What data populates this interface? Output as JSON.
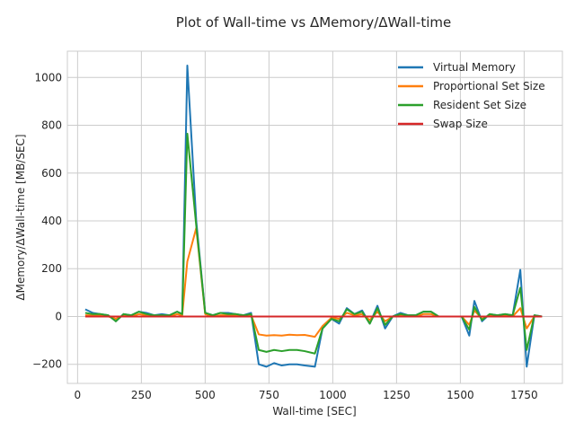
{
  "chart_data": {
    "type": "line",
    "title": "Plot of Wall-time vs ΔMemory/ΔWall-time",
    "xlabel": "Wall-time [SEC]",
    "ylabel": "ΔMemory/ΔWall-time [MB/SEC]",
    "xlim": [
      -40,
      1900
    ],
    "ylim": [
      -280,
      1110
    ],
    "grid": true,
    "legend_position": "top-right",
    "x_ticks": [
      0,
      250,
      500,
      750,
      1000,
      1250,
      1500,
      1750
    ],
    "x_tick_labels": [
      "0",
      "250",
      "500",
      "750",
      "1000",
      "1250",
      "1500",
      "1750"
    ],
    "y_ticks": [
      -200,
      0,
      200,
      400,
      600,
      800,
      1000
    ],
    "y_tick_labels": [
      "−200",
      "0",
      "200",
      "400",
      "600",
      "800",
      "1000"
    ],
    "x": [
      30,
      60,
      90,
      120,
      150,
      180,
      210,
      240,
      270,
      300,
      330,
      360,
      390,
      410,
      430,
      465,
      500,
      530,
      560,
      590,
      620,
      650,
      680,
      710,
      740,
      770,
      800,
      830,
      860,
      890,
      930,
      960,
      995,
      1025,
      1055,
      1085,
      1115,
      1145,
      1175,
      1205,
      1235,
      1265,
      1295,
      1325,
      1355,
      1385,
      1415,
      1445,
      1475,
      1505,
      1535,
      1555,
      1585,
      1615,
      1645,
      1675,
      1705,
      1735,
      1760,
      1790,
      1820
    ],
    "series": [
      {
        "name": "Virtual Memory",
        "color": "#1f77b4",
        "values": [
          30,
          15,
          10,
          5,
          -20,
          10,
          5,
          20,
          15,
          5,
          10,
          5,
          20,
          10,
          1050,
          400,
          15,
          5,
          15,
          15,
          10,
          5,
          15,
          -200,
          -210,
          -195,
          -205,
          -200,
          -200,
          -205,
          -210,
          -50,
          -10,
          -30,
          35,
          10,
          25,
          -30,
          45,
          -50,
          0,
          15,
          5,
          5,
          20,
          20,
          0,
          0,
          0,
          0,
          -80,
          65,
          -20,
          10,
          5,
          10,
          5,
          195,
          -210,
          5,
          0
        ]
      },
      {
        "name": "Proportional Set Size",
        "color": "#ff7f0e",
        "values": [
          5,
          5,
          5,
          0,
          -10,
          5,
          0,
          10,
          5,
          0,
          5,
          0,
          10,
          5,
          230,
          370,
          10,
          0,
          5,
          5,
          5,
          0,
          5,
          -75,
          -80,
          -78,
          -80,
          -76,
          -78,
          -77,
          -85,
          -40,
          -5,
          -10,
          15,
          5,
          10,
          -15,
          20,
          -20,
          0,
          5,
          0,
          0,
          10,
          10,
          0,
          0,
          0,
          0,
          -35,
          25,
          -10,
          5,
          0,
          5,
          0,
          35,
          -50,
          0,
          0
        ]
      },
      {
        "name": "Resident Set Size",
        "color": "#2ca02c",
        "values": [
          15,
          10,
          10,
          5,
          -20,
          10,
          5,
          20,
          10,
          5,
          5,
          5,
          20,
          10,
          765,
          380,
          15,
          5,
          15,
          10,
          10,
          5,
          10,
          -140,
          -148,
          -140,
          -145,
          -140,
          -140,
          -145,
          -155,
          -50,
          -10,
          -20,
          30,
          10,
          20,
          -30,
          35,
          -35,
          0,
          10,
          5,
          5,
          20,
          20,
          0,
          0,
          0,
          0,
          -55,
          40,
          -15,
          10,
          5,
          10,
          5,
          120,
          -140,
          5,
          0
        ]
      },
      {
        "name": "Swap Size",
        "color": "#d62728",
        "values": [
          0,
          0,
          0,
          0,
          0,
          0,
          0,
          0,
          0,
          0,
          0,
          0,
          0,
          0,
          0,
          0,
          0,
          0,
          0,
          0,
          0,
          0,
          0,
          0,
          0,
          0,
          0,
          0,
          0,
          0,
          0,
          0,
          0,
          0,
          0,
          0,
          0,
          0,
          0,
          0,
          0,
          0,
          0,
          0,
          0,
          0,
          0,
          0,
          0,
          0,
          0,
          0,
          0,
          0,
          0,
          0,
          0,
          0,
          0,
          0,
          0
        ]
      }
    ]
  }
}
